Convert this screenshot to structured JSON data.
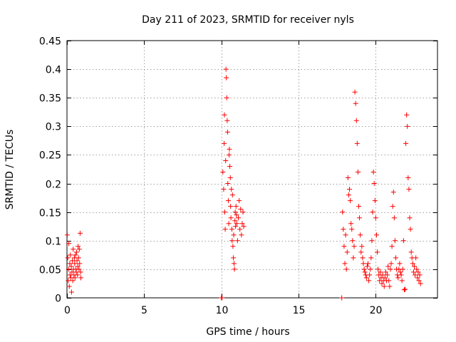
{
  "chart_data": {
    "type": "scatter",
    "title": "Day 211 of 2023, SRMTID for receiver nyls",
    "xlabel": "GPS time / hours",
    "ylabel": "SRMTID / TECUs",
    "xlim": [
      0,
      24
    ],
    "ylim": [
      0,
      0.45
    ],
    "xticks": [
      0,
      5,
      10,
      15,
      20
    ],
    "xtick_labels": [
      "0",
      "5",
      "10",
      "15",
      "20"
    ],
    "yticks": [
      0,
      0.05,
      0.1,
      0.15,
      0.2,
      0.25,
      0.3,
      0.35,
      0.4,
      0.45
    ],
    "ytick_labels": [
      "0",
      "0.05",
      "0.1",
      "0.15",
      "0.2",
      "0.25",
      "0.3",
      "0.35",
      "0.4",
      "0.45"
    ],
    "grid": true,
    "marker": "+",
    "marker_color": "#ff0000",
    "series": [
      {
        "name": "SRMTID",
        "points": [
          [
            0.02,
            0.11
          ],
          [
            0.05,
            0.07
          ],
          [
            0.08,
            0.03
          ],
          [
            0.1,
            0.05
          ],
          [
            0.12,
            0.095
          ],
          [
            0.15,
            0.02
          ],
          [
            0.18,
            0.06
          ],
          [
            0.2,
            0.04
          ],
          [
            0.22,
            0.075
          ],
          [
            0.25,
            0.035
          ],
          [
            0.28,
            0.055
          ],
          [
            0.3,
            0.01
          ],
          [
            0.32,
            0.045
          ],
          [
            0.35,
            0.065
          ],
          [
            0.38,
            0.03
          ],
          [
            0.4,
            0.085
          ],
          [
            0.42,
            0.05
          ],
          [
            0.45,
            0.04
          ],
          [
            0.48,
            0.07
          ],
          [
            0.5,
            0.06
          ],
          [
            0.52,
            0.035
          ],
          [
            0.55,
            0.075
          ],
          [
            0.58,
            0.05
          ],
          [
            0.6,
            0.045
          ],
          [
            0.62,
            0.08
          ],
          [
            0.65,
            0.065
          ],
          [
            0.68,
            0.04
          ],
          [
            0.7,
            0.055
          ],
          [
            0.72,
            0.09
          ],
          [
            0.75,
            0.07
          ],
          [
            0.78,
            0.05
          ],
          [
            0.8,
            0.085
          ],
          [
            0.82,
            0.06
          ],
          [
            0.85,
            0.113
          ],
          [
            0.88,
            0.045
          ],
          [
            0.9,
            0.035
          ],
          [
            10.0,
            0.0
          ],
          [
            10.05,
            0.0
          ],
          [
            10.1,
            0.22
          ],
          [
            10.15,
            0.19
          ],
          [
            10.18,
            0.27
          ],
          [
            10.2,
            0.32
          ],
          [
            10.22,
            0.15
          ],
          [
            10.25,
            0.12
          ],
          [
            10.28,
            0.24
          ],
          [
            10.3,
            0.4
          ],
          [
            10.32,
            0.385
          ],
          [
            10.35,
            0.35
          ],
          [
            10.38,
            0.31
          ],
          [
            10.4,
            0.29
          ],
          [
            10.42,
            0.2
          ],
          [
            10.45,
            0.17
          ],
          [
            10.48,
            0.13
          ],
          [
            10.5,
            0.25
          ],
          [
            10.52,
            0.26
          ],
          [
            10.55,
            0.23
          ],
          [
            10.58,
            0.21
          ],
          [
            10.6,
            0.16
          ],
          [
            10.62,
            0.14
          ],
          [
            10.65,
            0.19
          ],
          [
            10.68,
            0.12
          ],
          [
            10.7,
            0.1
          ],
          [
            10.72,
            0.18
          ],
          [
            10.75,
            0.09
          ],
          [
            10.78,
            0.07
          ],
          [
            10.8,
            0.11
          ],
          [
            10.82,
            0.06
          ],
          [
            10.85,
            0.05
          ],
          [
            10.88,
            0.135
          ],
          [
            10.9,
            0.15
          ],
          [
            10.92,
            0.125
          ],
          [
            10.95,
            0.16
          ],
          [
            10.98,
            0.145
          ],
          [
            11.0,
            0.13
          ],
          [
            11.05,
            0.1
          ],
          [
            11.1,
            0.14
          ],
          [
            11.15,
            0.17
          ],
          [
            11.2,
            0.12
          ],
          [
            11.25,
            0.155
          ],
          [
            11.3,
            0.11
          ],
          [
            11.35,
            0.13
          ],
          [
            11.4,
            0.15
          ],
          [
            11.45,
            0.125
          ],
          [
            17.8,
            0.0
          ],
          [
            17.85,
            0.15
          ],
          [
            17.9,
            0.12
          ],
          [
            17.95,
            0.09
          ],
          [
            18.0,
            0.06
          ],
          [
            18.05,
            0.11
          ],
          [
            18.1,
            0.05
          ],
          [
            18.15,
            0.08
          ],
          [
            18.2,
            0.21
          ],
          [
            18.25,
            0.18
          ],
          [
            18.3,
            0.19
          ],
          [
            18.35,
            0.17
          ],
          [
            18.4,
            0.13
          ],
          [
            18.45,
            0.12
          ],
          [
            18.5,
            0.1
          ],
          [
            18.55,
            0.07
          ],
          [
            18.6,
            0.09
          ],
          [
            18.65,
            0.36
          ],
          [
            18.7,
            0.34
          ],
          [
            18.75,
            0.31
          ],
          [
            18.8,
            0.27
          ],
          [
            18.85,
            0.22
          ],
          [
            18.9,
            0.16
          ],
          [
            18.95,
            0.14
          ],
          [
            19.0,
            0.11
          ],
          [
            19.05,
            0.08
          ],
          [
            19.1,
            0.09
          ],
          [
            19.15,
            0.07
          ],
          [
            19.2,
            0.06
          ],
          [
            19.25,
            0.05
          ],
          [
            19.3,
            0.045
          ],
          [
            19.35,
            0.04
          ],
          [
            19.4,
            0.035
          ],
          [
            19.45,
            0.055
          ],
          [
            19.5,
            0.06
          ],
          [
            19.55,
            0.03
          ],
          [
            19.6,
            0.04
          ],
          [
            19.65,
            0.05
          ],
          [
            19.7,
            0.07
          ],
          [
            19.75,
            0.1
          ],
          [
            19.8,
            0.15
          ],
          [
            19.85,
            0.22
          ],
          [
            19.9,
            0.2
          ],
          [
            19.95,
            0.17
          ],
          [
            20.0,
            0.14
          ],
          [
            20.05,
            0.11
          ],
          [
            20.1,
            0.08
          ],
          [
            20.15,
            0.05
          ],
          [
            20.2,
            0.04
          ],
          [
            20.25,
            0.03
          ],
          [
            20.3,
            0.045
          ],
          [
            20.35,
            0.035
          ],
          [
            20.4,
            0.025
          ],
          [
            20.45,
            0.04
          ],
          [
            20.5,
            0.03
          ],
          [
            20.55,
            0.02
          ],
          [
            20.6,
            0.035
          ],
          [
            20.65,
            0.045
          ],
          [
            20.7,
            0.03
          ],
          [
            20.75,
            0.04
          ],
          [
            20.8,
            0.055
          ],
          [
            20.85,
            0.03
          ],
          [
            20.9,
            0.02
          ],
          [
            20.95,
            0.05
          ],
          [
            21.0,
            0.06
          ],
          [
            21.05,
            0.09
          ],
          [
            21.1,
            0.16
          ],
          [
            21.15,
            0.185
          ],
          [
            21.2,
            0.14
          ],
          [
            21.25,
            0.1
          ],
          [
            21.3,
            0.07
          ],
          [
            21.35,
            0.05
          ],
          [
            21.4,
            0.04
          ],
          [
            21.45,
            0.035
          ],
          [
            21.5,
            0.05
          ],
          [
            21.55,
            0.06
          ],
          [
            21.6,
            0.045
          ],
          [
            21.65,
            0.04
          ],
          [
            21.7,
            0.03
          ],
          [
            21.75,
            0.05
          ],
          [
            21.8,
            0.1
          ],
          [
            21.85,
            0.014
          ],
          [
            21.9,
            0.015
          ],
          [
            21.95,
            0.27
          ],
          [
            22.0,
            0.32
          ],
          [
            22.05,
            0.3
          ],
          [
            22.1,
            0.21
          ],
          [
            22.15,
            0.19
          ],
          [
            22.2,
            0.14
          ],
          [
            22.25,
            0.12
          ],
          [
            22.3,
            0.08
          ],
          [
            22.35,
            0.07
          ],
          [
            22.4,
            0.06
          ],
          [
            22.45,
            0.045
          ],
          [
            22.5,
            0.055
          ],
          [
            22.55,
            0.04
          ],
          [
            22.6,
            0.07
          ],
          [
            22.65,
            0.05
          ],
          [
            22.7,
            0.035
          ],
          [
            22.75,
            0.045
          ],
          [
            22.8,
            0.03
          ],
          [
            22.85,
            0.04
          ],
          [
            22.9,
            0.025
          ]
        ]
      }
    ]
  }
}
